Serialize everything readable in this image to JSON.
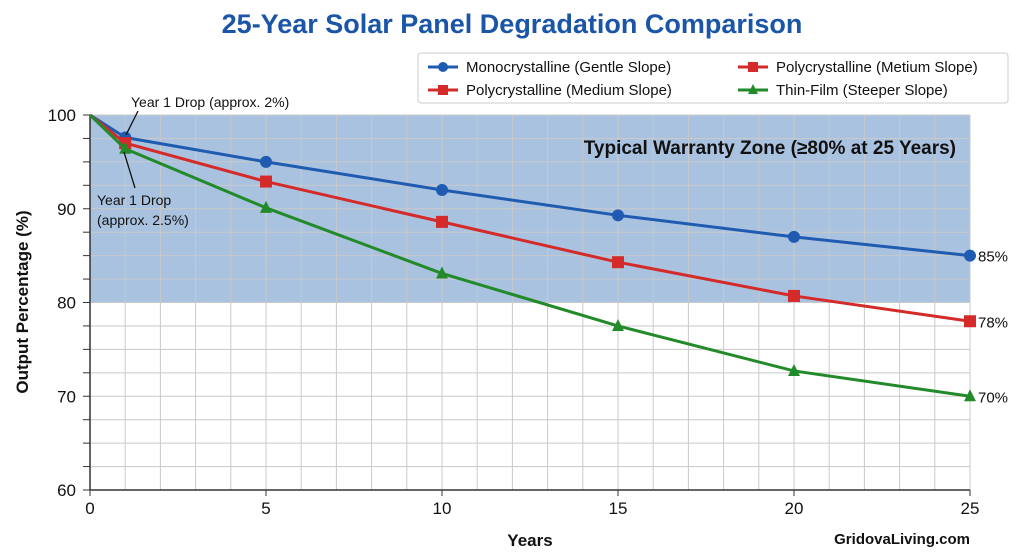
{
  "chart_data": {
    "type": "line",
    "title": "25-Year Solar Panel Degradation Comparison",
    "xlabel": "Years",
    "ylabel": "Output Percentage (%)",
    "xlim": [
      0,
      25
    ],
    "ylim": [
      60,
      100
    ],
    "x_ticks": [
      0,
      5,
      10,
      15,
      20,
      25
    ],
    "y_ticks": [
      60,
      70,
      80,
      90,
      100
    ],
    "grid": true,
    "legend_position": "top-right",
    "x": [
      0,
      1,
      5,
      10,
      15,
      20,
      25
    ],
    "series": [
      {
        "name": "Monocrystalline (Gentle Slope)",
        "color": "#1f5bb0",
        "marker": "circle",
        "values": [
          100,
          97.6,
          95.0,
          92.0,
          89.3,
          87.0,
          85
        ],
        "end_label": "85%"
      },
      {
        "name": "Polycrystalline (Medium Slope)",
        "color": "#d42a2a",
        "marker": "square",
        "values": [
          100,
          97.0,
          92.9,
          88.6,
          84.3,
          80.7,
          78
        ],
        "end_label": "78%"
      },
      {
        "name": "Thin-Film (Steeper Slope)",
        "color": "#238a2a",
        "marker": "triangle",
        "values": [
          100,
          96.4,
          90.1,
          83.1,
          77.5,
          72.7,
          70
        ],
        "end_label": "70%"
      }
    ],
    "legend_entries": [
      {
        "label": "Monocrystalline (Gentle Slope)",
        "color": "#1f5bb0",
        "marker": "circle"
      },
      {
        "label": "Polycrystalline (Metium Slope)",
        "color": "#d42a2a",
        "marker": "square"
      },
      {
        "label": "Polycrystalline (Medium Slope)",
        "color": "#d42a2a",
        "marker": "square"
      },
      {
        "label": "Thin-Film (Steeper Slope)",
        "color": "#238a2a",
        "marker": "triangle"
      }
    ],
    "warranty_zone": {
      "label": "Typical Warranty Zone (≥80% at 25 Years)",
      "from": 80,
      "to": 100,
      "color": "#a9c2e0"
    },
    "annotations": [
      {
        "text": "Year 1 Drop (approx. 2%)"
      },
      {
        "text_lines": [
          "Year 1 Drop",
          "(approx. 2.5%)"
        ]
      }
    ],
    "watermark": "GridovaLiving.com"
  }
}
